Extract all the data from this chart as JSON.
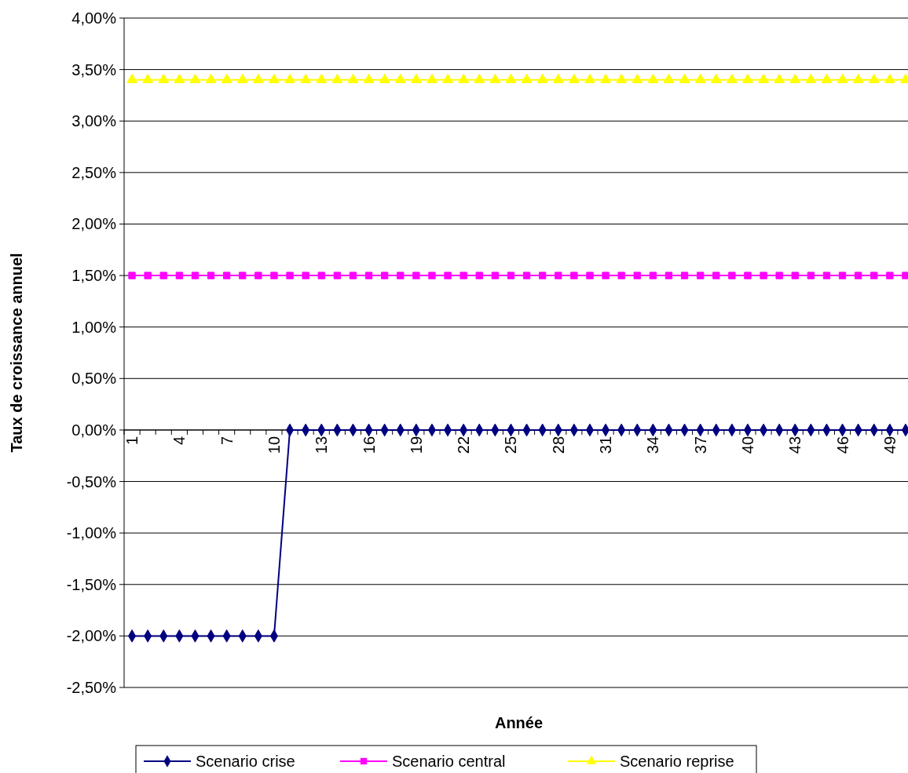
{
  "chart_data": {
    "type": "line",
    "xlabel": "Année",
    "ylabel": "Taux de croissance annuel",
    "categories": [
      "1",
      null,
      null,
      "4",
      null,
      null,
      "7",
      null,
      null,
      "10",
      null,
      null,
      "13",
      null,
      null,
      "16",
      null,
      null,
      "19",
      null,
      null,
      "22",
      null,
      null,
      "25",
      null,
      null,
      "28",
      null,
      null,
      "31",
      null,
      null,
      "34",
      null,
      null,
      "37",
      null,
      null,
      "40",
      null,
      null,
      "43",
      null,
      null,
      "46",
      null,
      null,
      "49",
      null
    ],
    "ylim": [
      -2.5,
      4
    ],
    "yticks": [
      {
        "value": -2.5,
        "label": "-2,50%"
      },
      {
        "value": -2,
        "label": "-2,00%"
      },
      {
        "value": -1.5,
        "label": "-1,50%"
      },
      {
        "value": -1,
        "label": "-1,00%"
      },
      {
        "value": -0.5,
        "label": "-0,50%"
      },
      {
        "value": 0,
        "label": "0,00%"
      },
      {
        "value": 0.5,
        "label": "0,50%"
      },
      {
        "value": 1,
        "label": "1,00%"
      },
      {
        "value": 1.5,
        "label": "1,50%"
      },
      {
        "value": 2,
        "label": "2,00%"
      },
      {
        "value": 2.5,
        "label": "2,50%"
      },
      {
        "value": 3,
        "label": "3,00%"
      },
      {
        "value": 3.5,
        "label": "3,50%"
      },
      {
        "value": 4,
        "label": "4,00%"
      }
    ],
    "grid": "y",
    "legend": "bottom",
    "line_style": "solid",
    "series": [
      {
        "name": "Scenario crise",
        "color": "#000080",
        "marker": "diamond",
        "values": [
          -2,
          -2,
          -2,
          -2,
          -2,
          -2,
          -2,
          -2,
          -2,
          -2,
          0,
          0,
          0,
          0,
          0,
          0,
          0,
          0,
          0,
          0,
          0,
          0,
          0,
          0,
          0,
          0,
          0,
          0,
          0,
          0,
          0,
          0,
          0,
          0,
          0,
          0,
          0,
          0,
          0,
          0,
          0,
          0,
          0,
          0,
          0,
          0,
          0,
          0,
          0,
          0
        ]
      },
      {
        "name": "Scenario central",
        "color": "#ff00ff",
        "marker": "square",
        "values": [
          1.5,
          1.5,
          1.5,
          1.5,
          1.5,
          1.5,
          1.5,
          1.5,
          1.5,
          1.5,
          1.5,
          1.5,
          1.5,
          1.5,
          1.5,
          1.5,
          1.5,
          1.5,
          1.5,
          1.5,
          1.5,
          1.5,
          1.5,
          1.5,
          1.5,
          1.5,
          1.5,
          1.5,
          1.5,
          1.5,
          1.5,
          1.5,
          1.5,
          1.5,
          1.5,
          1.5,
          1.5,
          1.5,
          1.5,
          1.5,
          1.5,
          1.5,
          1.5,
          1.5,
          1.5,
          1.5,
          1.5,
          1.5,
          1.5,
          1.5
        ]
      },
      {
        "name": "Scenario reprise",
        "color": "#ffff00",
        "marker": "triangle",
        "values": [
          3.4,
          3.4,
          3.4,
          3.4,
          3.4,
          3.4,
          3.4,
          3.4,
          3.4,
          3.4,
          3.4,
          3.4,
          3.4,
          3.4,
          3.4,
          3.4,
          3.4,
          3.4,
          3.4,
          3.4,
          3.4,
          3.4,
          3.4,
          3.4,
          3.4,
          3.4,
          3.4,
          3.4,
          3.4,
          3.4,
          3.4,
          3.4,
          3.4,
          3.4,
          3.4,
          3.4,
          3.4,
          3.4,
          3.4,
          3.4,
          3.4,
          3.4,
          3.4,
          3.4,
          3.4,
          3.4,
          3.4,
          3.4,
          3.4,
          3.4
        ]
      }
    ]
  }
}
